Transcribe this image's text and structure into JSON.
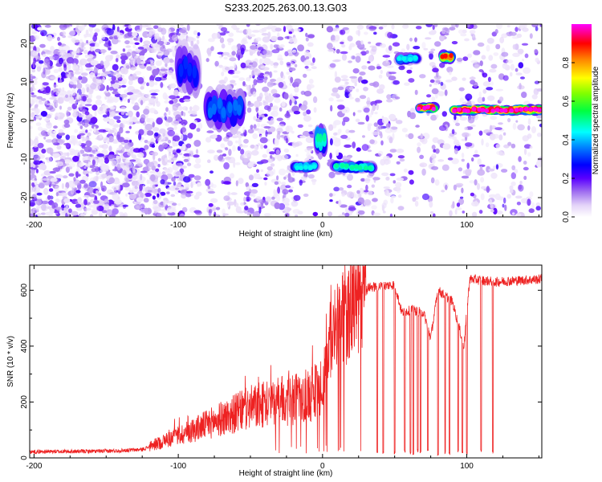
{
  "title": "S233.2025.263.00.13.G03",
  "chart_data": [
    {
      "type": "heatmap",
      "xlabel": "Height of straight line (km)",
      "ylabel": "Frequency (Hz)",
      "xlim": [
        -203,
        152
      ],
      "ylim": [
        -25,
        25
      ],
      "x_ticks": [
        -200,
        -100,
        0,
        100
      ],
      "y_ticks": [
        -20,
        -10,
        0,
        10,
        20
      ],
      "colorbar": {
        "label": "Normalized spectral amplitude",
        "range": [
          0,
          1
        ],
        "ticks": [
          0.0,
          0.2,
          0.4,
          0.6,
          0.8
        ],
        "colors": [
          "#ffffff",
          "#c8a8f0",
          "#7a00ff",
          "#0000ff",
          "#00ffff",
          "#00ff00",
          "#ffff00",
          "#ff0000",
          "#ff00ff"
        ]
      },
      "background_regions": [
        {
          "x": [
            -203,
            -95
          ],
          "y": [
            -25,
            25
          ],
          "density": 0.8
        },
        {
          "x": [
            -95,
            -85
          ],
          "y": [
            -25,
            25
          ],
          "density": 0.4
        },
        {
          "x": [
            -80,
            -56
          ],
          "y": [
            -25,
            25
          ],
          "density": 0.35
        },
        {
          "x": [
            -56,
            -18
          ],
          "y": [
            -25,
            25
          ],
          "density": 0.55
        },
        {
          "x": [
            -18,
            -5
          ],
          "y": [
            -25,
            25
          ],
          "density": 0.3
        },
        {
          "x": [
            5,
            50
          ],
          "y": [
            -25,
            25
          ],
          "density": 0.35
        },
        {
          "x": [
            50,
            75
          ],
          "y": [
            -25,
            25
          ],
          "density": 0.15
        },
        {
          "x": [
            75,
            80
          ],
          "y": [
            -25,
            25
          ],
          "density": 0.5
        },
        {
          "x": [
            82,
            152
          ],
          "y": [
            -25,
            25
          ],
          "density": 0.25
        }
      ],
      "features": [
        {
          "x": [
            -100,
            -87
          ],
          "y": [
            8,
            18
          ],
          "peak": 0.3
        },
        {
          "x": [
            -80,
            -56
          ],
          "y": [
            -1,
            7
          ],
          "peak": 0.35
        },
        {
          "x": [
            -20,
            -4
          ],
          "y": [
            -13,
            -11
          ],
          "peak": 0.45
        },
        {
          "x": [
            -4,
            2
          ],
          "y": [
            -8,
            -2
          ],
          "peak": 0.5
        },
        {
          "x": [
            8,
            35
          ],
          "y": [
            -13,
            -11
          ],
          "peak": 0.5
        },
        {
          "x": [
            52,
            66
          ],
          "y": [
            15,
            17
          ],
          "peak": 0.45
        },
        {
          "x": [
            66,
            78
          ],
          "y": [
            2.5,
            4
          ],
          "peak": 1.0
        },
        {
          "x": [
            82,
            90
          ],
          "y": [
            15.5,
            17.5
          ],
          "peak": 0.9
        },
        {
          "x": [
            90,
            152
          ],
          "y": [
            2,
            3.5
          ],
          "peak": 1.0
        }
      ]
    },
    {
      "type": "line",
      "xlabel": "Height of straight line (km)",
      "ylabel": "SNR (10 * v/v)",
      "xlim": [
        -203,
        152
      ],
      "ylim": [
        0,
        690
      ],
      "x_ticks": [
        -200,
        -100,
        0,
        100
      ],
      "y_ticks": [
        0,
        200,
        400,
        600
      ],
      "color": "#ee2222",
      "baseline_profile": [
        {
          "x": -203,
          "snr": 22
        },
        {
          "x": -150,
          "snr": 24
        },
        {
          "x": -125,
          "snr": 30
        },
        {
          "x": -110,
          "snr": 60
        },
        {
          "x": -90,
          "snr": 100
        },
        {
          "x": -70,
          "snr": 140
        },
        {
          "x": -50,
          "snr": 180
        },
        {
          "x": -30,
          "snr": 200
        },
        {
          "x": -20,
          "snr": 210
        },
        {
          "x": -10,
          "snr": 220
        },
        {
          "x": 0,
          "snr": 260
        },
        {
          "x": 5,
          "snr": 420
        },
        {
          "x": 15,
          "snr": 500
        },
        {
          "x": 25,
          "snr": 560
        },
        {
          "x": 32,
          "snr": 610
        },
        {
          "x": 50,
          "snr": 620
        },
        {
          "x": 55,
          "snr": 520
        },
        {
          "x": 62,
          "snr": 530
        },
        {
          "x": 70,
          "snr": 520
        },
        {
          "x": 75,
          "snr": 430
        },
        {
          "x": 80,
          "snr": 600
        },
        {
          "x": 90,
          "snr": 560
        },
        {
          "x": 98,
          "snr": 400
        },
        {
          "x": 102,
          "snr": 640
        },
        {
          "x": 120,
          "snr": 630
        },
        {
          "x": 152,
          "snr": 640
        }
      ],
      "dropouts": [
        {
          "x": 38,
          "snr": 15
        },
        {
          "x": 42,
          "snr": 15
        },
        {
          "x": 50,
          "snr": 12
        },
        {
          "x": 57,
          "snr": 20
        },
        {
          "x": 61,
          "snr": 15
        },
        {
          "x": 63,
          "snr": 10
        },
        {
          "x": 66,
          "snr": 20
        },
        {
          "x": 68,
          "snr": 15
        },
        {
          "x": 73,
          "snr": 20
        },
        {
          "x": 80,
          "snr": 10
        },
        {
          "x": 85,
          "snr": 15
        },
        {
          "x": 88,
          "snr": 10
        },
        {
          "x": 94,
          "snr": 20
        },
        {
          "x": 97,
          "snr": 15
        },
        {
          "x": 100,
          "snr": 10
        },
        {
          "x": 110,
          "snr": 20
        },
        {
          "x": 118,
          "snr": 15
        }
      ]
    }
  ]
}
